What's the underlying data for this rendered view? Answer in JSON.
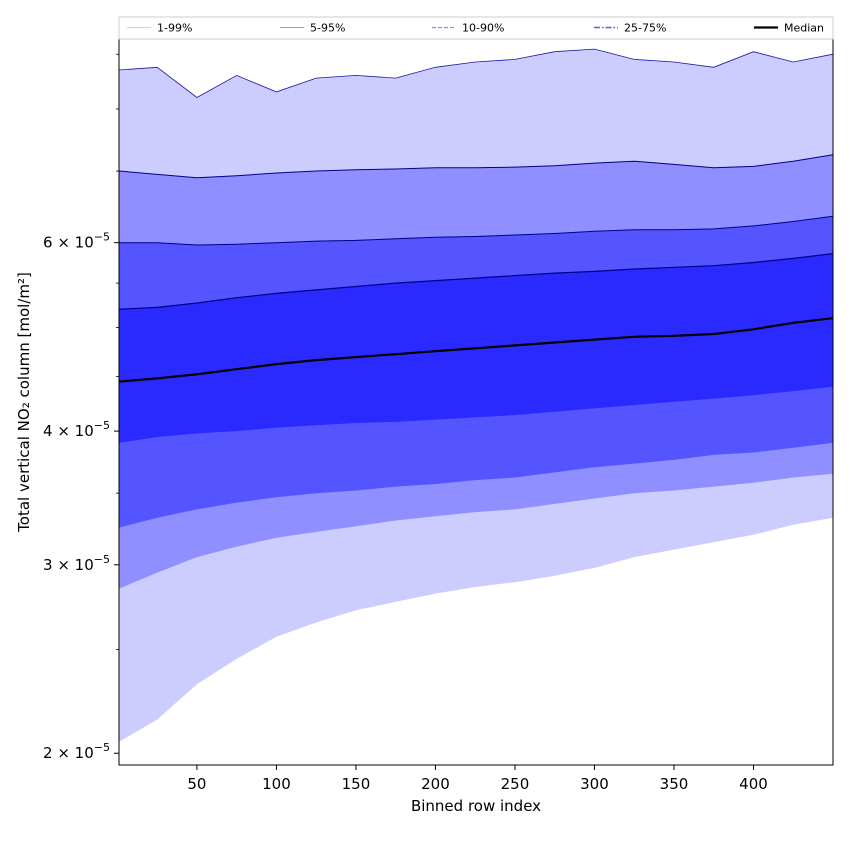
{
  "chart_data": {
    "type": "area",
    "xlabel": "Binned row index",
    "ylabel": "Total vertical NO₂ column [mol/m²]",
    "xlim": [
      1,
      450
    ],
    "ylim": [
      1.95e-05,
      9.3e-05
    ],
    "yscale": "log",
    "x_ticks": [
      50,
      100,
      150,
      200,
      250,
      300,
      350,
      400
    ],
    "y_ticks": [
      {
        "value": 2e-05,
        "mantissa": "2",
        "exponent": "−5"
      },
      {
        "value": 3e-05,
        "mantissa": "3",
        "exponent": "−5"
      },
      {
        "value": 4e-05,
        "mantissa": "4",
        "exponent": "−5"
      },
      {
        "value": 6e-05,
        "mantissa": "6",
        "exponent": "−5"
      }
    ],
    "x": [
      1,
      25,
      50,
      75,
      100,
      125,
      150,
      175,
      200,
      225,
      250,
      275,
      300,
      325,
      350,
      375,
      400,
      425,
      450
    ],
    "percentile_bands": [
      {
        "name": "1-99%",
        "color": "#ccccff",
        "line_color": "#ccccff",
        "lower": [
          2.05e-05,
          2.15e-05,
          2.32e-05,
          2.45e-05,
          2.57e-05,
          2.65e-05,
          2.72e-05,
          2.77e-05,
          2.82e-05,
          2.86e-05,
          2.89e-05,
          2.93e-05,
          2.98e-05,
          3.05e-05,
          3.1e-05,
          3.15e-05,
          3.2e-05,
          3.27e-05,
          3.32e-05
        ],
        "upper": [
          8.7e-05,
          8.75e-05,
          8.2e-05,
          8.6e-05,
          8.3e-05,
          8.55e-05,
          8.6e-05,
          8.55e-05,
          8.75e-05,
          8.85e-05,
          8.9e-05,
          9.05e-05,
          9.1e-05,
          8.9e-05,
          8.85e-05,
          8.75e-05,
          9.05e-05,
          8.85e-05,
          9e-05
        ]
      },
      {
        "name": "5-95%",
        "color": "#8f8fff",
        "line_color": "#00008b",
        "lower": [
          2.85e-05,
          2.95e-05,
          3.05e-05,
          3.12e-05,
          3.18e-05,
          3.22e-05,
          3.26e-05,
          3.3e-05,
          3.33e-05,
          3.36e-05,
          3.38e-05,
          3.42e-05,
          3.46e-05,
          3.5e-05,
          3.52e-05,
          3.55e-05,
          3.58e-05,
          3.62e-05,
          3.65e-05
        ],
        "upper": [
          7e-05,
          6.95e-05,
          6.9e-05,
          6.93e-05,
          6.97e-05,
          7e-05,
          7.02e-05,
          7.03e-05,
          7.05e-05,
          7.05e-05,
          7.06e-05,
          7.08e-05,
          7.12e-05,
          7.15e-05,
          7.1e-05,
          7.05e-05,
          7.07e-05,
          7.15e-05,
          7.25e-05
        ]
      },
      {
        "name": "10-90%",
        "color": "#5555ff",
        "line_color": "#00008b",
        "lower": [
          3.25e-05,
          3.32e-05,
          3.38e-05,
          3.43e-05,
          3.47e-05,
          3.5e-05,
          3.52e-05,
          3.55e-05,
          3.57e-05,
          3.6e-05,
          3.62e-05,
          3.66e-05,
          3.7e-05,
          3.73e-05,
          3.76e-05,
          3.8e-05,
          3.82e-05,
          3.86e-05,
          3.9e-05
        ]
      },
      {
        "name": "25-75%",
        "color": "#2a2aff",
        "line_color": "#00008b",
        "lower": [
          3.9e-05,
          3.95e-05,
          3.98e-05,
          4e-05,
          4.03e-05,
          4.05e-05,
          4.07e-05,
          4.08e-05,
          4.1e-05,
          4.12e-05,
          4.14e-05,
          4.17e-05,
          4.2e-05,
          4.23e-05,
          4.26e-05,
          4.29e-05,
          4.32e-05,
          4.36e-05,
          4.4e-05
        ],
        "upper": [
          5.2e-05,
          5.22e-05,
          5.27e-05,
          5.33e-05,
          5.38e-05,
          5.42e-05,
          5.46e-05,
          5.5e-05,
          5.53e-05,
          5.56e-05,
          5.59e-05,
          5.62e-05,
          5.64e-05,
          5.67e-05,
          5.69e-05,
          5.71e-05,
          5.75e-05,
          5.8e-05,
          5.86e-05
        ]
      }
    ],
    "band_10_90_upper": [
      6e-05,
      6e-05,
      5.97e-05,
      5.98e-05,
      6e-05,
      6.02e-05,
      6.03e-05,
      6.05e-05,
      6.07e-05,
      6.08e-05,
      6.1e-05,
      6.12e-05,
      6.15e-05,
      6.17e-05,
      6.17e-05,
      6.18e-05,
      6.22e-05,
      6.28e-05,
      6.35e-05
    ],
    "series": [
      {
        "name": "Median",
        "color": "#000000",
        "values": [
          4.45e-05,
          4.48e-05,
          4.52e-05,
          4.57e-05,
          4.62e-05,
          4.66e-05,
          4.69e-05,
          4.72e-05,
          4.75e-05,
          4.78e-05,
          4.81e-05,
          4.84e-05,
          4.87e-05,
          4.9e-05,
          4.91e-05,
          4.93e-05,
          4.98e-05,
          5.05e-05,
          5.1e-05
        ]
      }
    ],
    "legend": {
      "placement": "top",
      "entries": [
        {
          "label": "1-99%",
          "color": "#ccccff",
          "style": "solid"
        },
        {
          "label": "5-95%",
          "color": "#8f8fff",
          "style": "solid"
        },
        {
          "label": "10-90%",
          "color": "#8f8fff",
          "style": "dashed"
        },
        {
          "label": "25-75%",
          "color": "#5a5aee",
          "style": "dashdot"
        },
        {
          "label": "Median",
          "color": "#000000",
          "style": "solid-thick"
        }
      ]
    },
    "grid": false
  }
}
